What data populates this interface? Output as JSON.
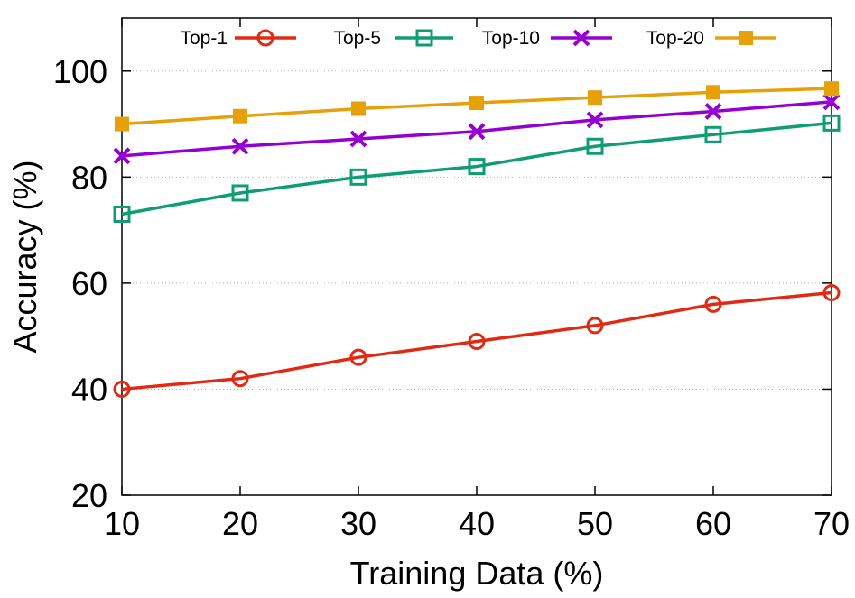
{
  "chart_data": {
    "type": "line",
    "xlabel": "Training Data (%)",
    "ylabel": "Accuracy (%)",
    "x": [
      10,
      20,
      30,
      40,
      50,
      60,
      70
    ],
    "xlim": [
      10,
      70
    ],
    "ylim": [
      20,
      110
    ],
    "xticks": [
      10,
      20,
      30,
      40,
      50,
      60,
      70
    ],
    "yticks": [
      20,
      40,
      60,
      80,
      100
    ],
    "grid": true,
    "legend_position": "top",
    "series": [
      {
        "name": "Top-1",
        "color": "#e12a14",
        "marker": "open-circle",
        "values": [
          40,
          42,
          46,
          49,
          52,
          56,
          58.2
        ]
      },
      {
        "name": "Top-5",
        "color": "#0f9d74",
        "marker": "open-square",
        "values": [
          73,
          77,
          80,
          82,
          85.8,
          88,
          90.2
        ]
      },
      {
        "name": "Top-10",
        "color": "#9400d3",
        "marker": "cross",
        "values": [
          84,
          85.8,
          87.2,
          88.6,
          90.8,
          92.4,
          94.2
        ]
      },
      {
        "name": "Top-20",
        "color": "#e6a00a",
        "marker": "filled-square",
        "values": [
          90,
          91.5,
          92.9,
          94,
          95,
          96,
          96.7
        ]
      }
    ]
  }
}
